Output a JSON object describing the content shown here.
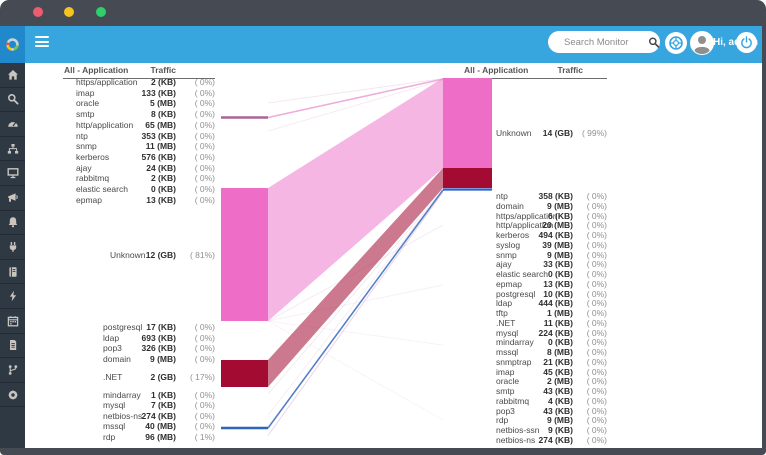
{
  "window": {
    "controls": [
      {
        "name": "close"
      },
      {
        "name": "minimize"
      },
      {
        "name": "zoom"
      }
    ]
  },
  "header": {
    "search_placeholder": "Search Monitor",
    "greeting": "Hi, admin",
    "icons": [
      "search-icon",
      "lifebuoy-icon",
      "avatar",
      "power-icon"
    ],
    "colors": {
      "bar": "#38a6de",
      "logo_tile": "#2188cb"
    }
  },
  "sidebar": {
    "color": "#2e3944",
    "items": [
      {
        "id": "home"
      },
      {
        "id": "search"
      },
      {
        "id": "dashboard"
      },
      {
        "id": "topology"
      },
      {
        "id": "monitor"
      },
      {
        "id": "announcement"
      },
      {
        "id": "alerts"
      },
      {
        "id": "plugin"
      },
      {
        "id": "logs"
      },
      {
        "id": "events"
      },
      {
        "id": "schedule"
      },
      {
        "id": "reports"
      },
      {
        "id": "workflow"
      },
      {
        "id": "settings"
      }
    ]
  },
  "flow": {
    "colors": {
      "node_pink": "#ee6dc7",
      "node_red": "#a30b33",
      "line_http": "#a8649c",
      "flow_http": "#eda4d4",
      "line_rdp": "#2e66bd",
      "line_rdp_right": "#2f5fc9",
      "flow_blue": "#4472c4",
      "hair_pink": "#d8a0c8",
      "hair_gray": "#999999"
    },
    "left": {
      "header_app": "All - Application",
      "header_traffic": "Traffic",
      "groups": {
        "top": [
          {
            "app": "https/application",
            "traffic": "2 (KB)",
            "pct": "( 0%)"
          },
          {
            "app": "imap",
            "traffic": "133 (KB)",
            "pct": "( 0%)"
          },
          {
            "app": "oracle",
            "traffic": "5 (MB)",
            "pct": "( 0%)"
          },
          {
            "app": "smtp",
            "traffic": "8 (KB)",
            "pct": "( 0%)"
          },
          {
            "app": "http/application",
            "traffic": "65 (MB)",
            "pct": "( 0%)"
          },
          {
            "app": "ntp",
            "traffic": "353 (KB)",
            "pct": "( 0%)"
          },
          {
            "app": "snmp",
            "traffic": "11 (MB)",
            "pct": "( 0%)"
          },
          {
            "app": "kerberos",
            "traffic": "576 (KB)",
            "pct": "( 0%)"
          },
          {
            "app": "ajay",
            "traffic": "24 (KB)",
            "pct": "( 0%)"
          },
          {
            "app": "rabbitmq",
            "traffic": "2 (KB)",
            "pct": "( 0%)"
          },
          {
            "app": "elastic search",
            "traffic": "0 (KB)",
            "pct": "( 0%)"
          },
          {
            "app": "epmap",
            "traffic": "13 (KB)",
            "pct": "( 0%)"
          }
        ],
        "unknown": [
          {
            "app": "Unknown",
            "traffic": "12 (GB)",
            "pct": "( 81%)"
          }
        ],
        "mid": [
          {
            "app": "postgresql",
            "traffic": "17 (KB)",
            "pct": "( 0%)"
          },
          {
            "app": "ldap",
            "traffic": "693 (KB)",
            "pct": "( 0%)"
          },
          {
            "app": "pop3",
            "traffic": "326 (KB)",
            "pct": "( 0%)"
          },
          {
            "app": "domain",
            "traffic": "9 (MB)",
            "pct": "( 0%)"
          }
        ],
        "net": [
          {
            "app": ".NET",
            "traffic": "2 (GB)",
            "pct": "( 17%)"
          }
        ],
        "bottom": [
          {
            "app": "mindarray",
            "traffic": "1 (KB)",
            "pct": "( 0%)"
          },
          {
            "app": "mysql",
            "traffic": "7 (KB)",
            "pct": "( 0%)"
          },
          {
            "app": "netbios-ns",
            "traffic": "274 (KB)",
            "pct": "( 0%)"
          },
          {
            "app": "mssql",
            "traffic": "40 (MB)",
            "pct": "( 0%)"
          },
          {
            "app": "rdp",
            "traffic": "96 (MB)",
            "pct": "( 1%)"
          }
        ]
      }
    },
    "right": {
      "header_app": "All - Application",
      "header_traffic": "Traffic",
      "groups": {
        "unknown": [
          {
            "app": "Unknown",
            "traffic": "14 (GB)",
            "pct": "( 99%)"
          }
        ],
        "list": [
          {
            "app": "ntp",
            "traffic": "358 (KB)",
            "pct": "( 0%)"
          },
          {
            "app": "domain",
            "traffic": "9 (MB)",
            "pct": "( 0%)"
          },
          {
            "app": "https/application",
            "traffic": "6 (KB)",
            "pct": "( 0%)"
          },
          {
            "app": "http/application",
            "traffic": "20 (MB)",
            "pct": "( 0%)"
          },
          {
            "app": "kerberos",
            "traffic": "494 (KB)",
            "pct": "( 0%)"
          },
          {
            "app": "syslog",
            "traffic": "39 (MB)",
            "pct": "( 0%)"
          },
          {
            "app": "snmp",
            "traffic": "9 (MB)",
            "pct": "( 0%)"
          },
          {
            "app": "ajay",
            "traffic": "33 (KB)",
            "pct": "( 0%)"
          },
          {
            "app": "elastic search",
            "traffic": "0 (KB)",
            "pct": "( 0%)"
          },
          {
            "app": "epmap",
            "traffic": "13 (KB)",
            "pct": "( 0%)"
          },
          {
            "app": "postgresql",
            "traffic": "10 (KB)",
            "pct": "( 0%)"
          },
          {
            "app": "ldap",
            "traffic": "444 (KB)",
            "pct": "( 0%)"
          },
          {
            "app": "tftp",
            "traffic": "1 (MB)",
            "pct": "( 0%)"
          },
          {
            "app": ".NET",
            "traffic": "11 (KB)",
            "pct": "( 0%)"
          },
          {
            "app": "mysql",
            "traffic": "224 (KB)",
            "pct": "( 0%)"
          },
          {
            "app": "mindarray",
            "traffic": "0 (KB)",
            "pct": "( 0%)"
          },
          {
            "app": "mssql",
            "traffic": "8 (MB)",
            "pct": "( 0%)"
          },
          {
            "app": "snmptrap",
            "traffic": "21 (KB)",
            "pct": "( 0%)"
          },
          {
            "app": "imap",
            "traffic": "45 (KB)",
            "pct": "( 0%)"
          },
          {
            "app": "oracle",
            "traffic": "2 (MB)",
            "pct": "( 0%)"
          },
          {
            "app": "smtp",
            "traffic": "43 (KB)",
            "pct": "( 0%)"
          },
          {
            "app": "rabbitmq",
            "traffic": "4 (KB)",
            "pct": "( 0%)"
          },
          {
            "app": "pop3",
            "traffic": "43 (KB)",
            "pct": "( 0%)"
          },
          {
            "app": "rdp",
            "traffic": "9 (MB)",
            "pct": "( 0%)"
          },
          {
            "app": "netbios-ssn",
            "traffic": "9 (KB)",
            "pct": "( 0%)"
          },
          {
            "app": "netbios-ns",
            "traffic": "274 (KB)",
            "pct": "( 0%)"
          }
        ]
      }
    }
  },
  "chart_data": {
    "type": "sankey",
    "left_axis": "All - Application (source)",
    "right_axis": "All - Application (destination)",
    "links": [
      {
        "source": "Unknown",
        "target": "Unknown",
        "value": "12 (GB)",
        "color": "#ee6dc7"
      },
      {
        "source": ".NET",
        "target": "Unknown",
        "value": "2 (GB)",
        "color": "#a30b33"
      },
      {
        "source": "rdp",
        "target": "Unknown",
        "value": "96 (MB)",
        "color": "#2e66bd"
      },
      {
        "source": "http/application",
        "target": "Unknown",
        "value": "65 (MB)",
        "color": "#eda4d4"
      }
    ]
  }
}
